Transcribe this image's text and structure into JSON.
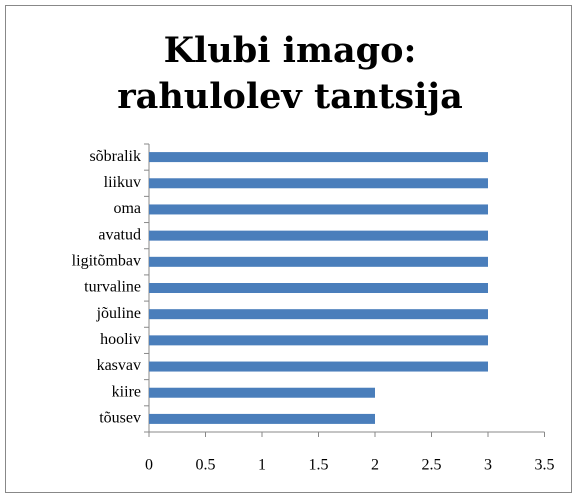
{
  "chart_data": {
    "type": "bar",
    "orientation": "horizontal",
    "title": "Klubi imago: rahulolev tantsija",
    "categories": [
      "sõbralik",
      "liikuv",
      "oma",
      "avatud",
      "ligitõmbav",
      "turvaline",
      "jõuline",
      "hooliv",
      "kasvav",
      "kiire",
      "tõusev"
    ],
    "values": [
      3,
      3,
      3,
      3,
      3,
      3,
      3,
      3,
      3,
      2,
      2
    ],
    "color": "#4a7ebb",
    "xlim": [
      0,
      3.5
    ],
    "xticks": [
      0,
      0.5,
      1,
      1.5,
      2,
      2.5,
      3,
      3.5
    ],
    "grid": false
  }
}
